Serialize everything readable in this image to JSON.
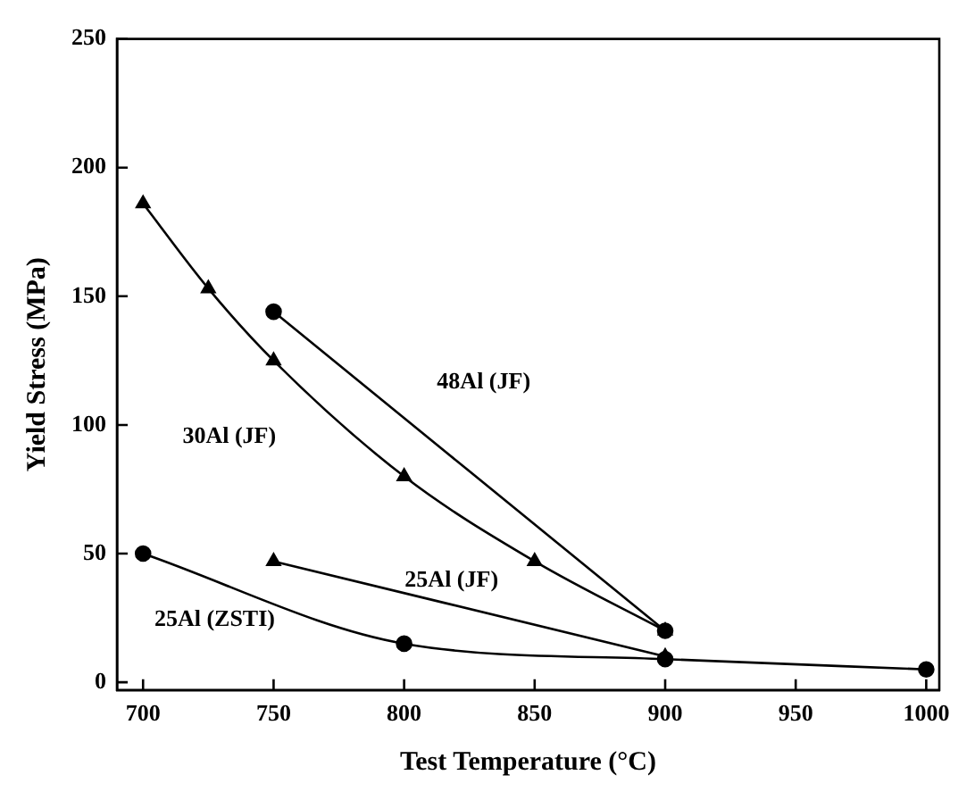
{
  "chart_data": {
    "type": "line",
    "xlabel": "Test Temperature (°C)",
    "ylabel": "Yield Stress (MPa)",
    "xlim": [
      690,
      1005
    ],
    "xticks": [
      700,
      750,
      800,
      850,
      900,
      950,
      1000
    ],
    "ylim": [
      -3,
      250
    ],
    "yticks": [
      0,
      50,
      100,
      150,
      200,
      250
    ],
    "grid": false,
    "legend": false,
    "line_style": "solid",
    "series": [
      {
        "name": "48Al (JF)",
        "color": "#000000",
        "marker": "circle",
        "x": [
          750,
          900
        ],
        "values": [
          144,
          20
        ]
      },
      {
        "name": "30Al (JF)",
        "color": "#000000",
        "marker": "triangle",
        "x": [
          700,
          725,
          750,
          800,
          850,
          900
        ],
        "values": [
          186,
          153,
          125,
          80,
          47,
          20
        ]
      },
      {
        "name": "25Al (JF)",
        "color": "#000000",
        "marker": "triangle",
        "x": [
          750,
          900
        ],
        "values": [
          47,
          10
        ]
      },
      {
        "name": "25Al (ZSTI)",
        "color": "#000000",
        "marker": "circle",
        "x": [
          700,
          800,
          900,
          1000
        ],
        "values": [
          50,
          15,
          9,
          5
        ]
      }
    ]
  }
}
